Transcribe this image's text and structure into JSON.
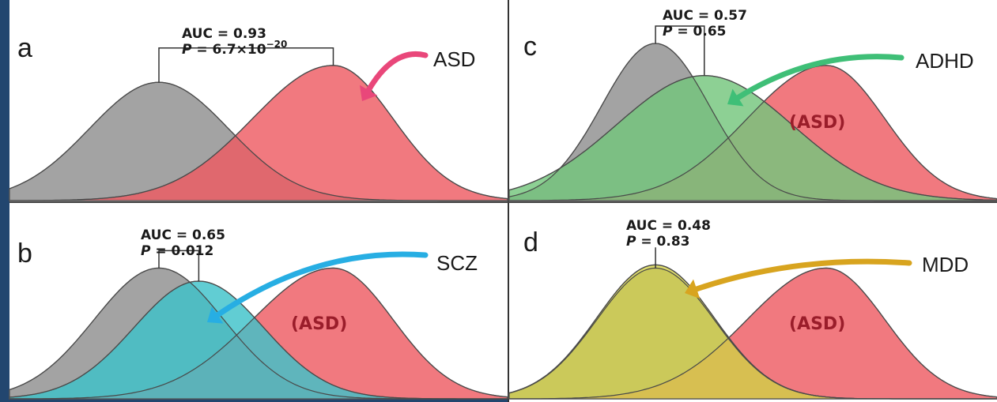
{
  "chart_data": [
    {
      "type": "area",
      "panel": "a",
      "stat_line1": "AUC = 0.93",
      "stat_line2_prefix": "P",
      "stat_line2_value": " = 6.7×10",
      "stat_line2_exp": "−20",
      "series": [
        {
          "name": "",
          "color": "#9e9e9e",
          "mu": 0.3,
          "sd": 0.14,
          "peak": 0.7
        },
        {
          "name": "ASD",
          "color": "#ee5b63",
          "mu": 0.65,
          "sd": 0.12,
          "peak": 0.8,
          "skew": 0.35
        }
      ],
      "label": "ASD",
      "label_color": "#e9477a"
    },
    {
      "type": "area",
      "panel": "b",
      "stat_line1": "AUC = 0.65",
      "stat_line2_prefix": "P",
      "stat_line2_value": " = 0.012",
      "series": [
        {
          "name": "",
          "color": "#9e9e9e",
          "mu": 0.3,
          "sd": 0.13,
          "peak": 0.8
        },
        {
          "name": "",
          "color": "#ee5b63",
          "mu": 0.65,
          "sd": 0.12,
          "peak": 0.8,
          "skew": 0.35
        },
        {
          "name": "SCZ",
          "color": "#3ec2c9",
          "mu": 0.38,
          "sd": 0.13,
          "peak": 0.72
        }
      ],
      "label": "SCZ",
      "label_color": "#27aee3",
      "asd_tag": "(ASD)"
    },
    {
      "type": "area",
      "panel": "c",
      "stat_line1": "AUC = 0.57",
      "stat_line2_prefix": "P",
      "stat_line2_value": " = 0.65",
      "series": [
        {
          "name": "",
          "color": "#9e9e9e",
          "mu": 0.3,
          "sd": 0.11,
          "peak": 0.93
        },
        {
          "name": "",
          "color": "#ee5b63",
          "mu": 0.65,
          "sd": 0.12,
          "peak": 0.8,
          "skew": 0.35
        },
        {
          "name": "ADHD",
          "color": "#74c67c",
          "mu": 0.4,
          "sd": 0.18,
          "peak": 0.74
        }
      ],
      "label": "ADHD",
      "label_color": "#3fbf77",
      "asd_tag": "(ASD)"
    },
    {
      "type": "area",
      "panel": "d",
      "stat_line1": "AUC = 0.48",
      "stat_line2_prefix": "P",
      "stat_line2_value": " = 0.83",
      "series": [
        {
          "name": "",
          "color": "#9e9e9e",
          "mu": 0.3,
          "sd": 0.12,
          "peak": 0.8
        },
        {
          "name": "",
          "color": "#ee5b63",
          "mu": 0.65,
          "sd": 0.12,
          "peak": 0.8,
          "skew": 0.35
        },
        {
          "name": "MDD",
          "color": "#d4d24a",
          "mu": 0.3,
          "sd": 0.12,
          "peak": 0.82
        }
      ],
      "label": "MDD",
      "label_color": "#d8a41f",
      "asd_tag": "(ASD)"
    }
  ],
  "colors": {
    "page_background": "#ffffff",
    "left_frame": "#22466f",
    "divider": "#333333"
  }
}
